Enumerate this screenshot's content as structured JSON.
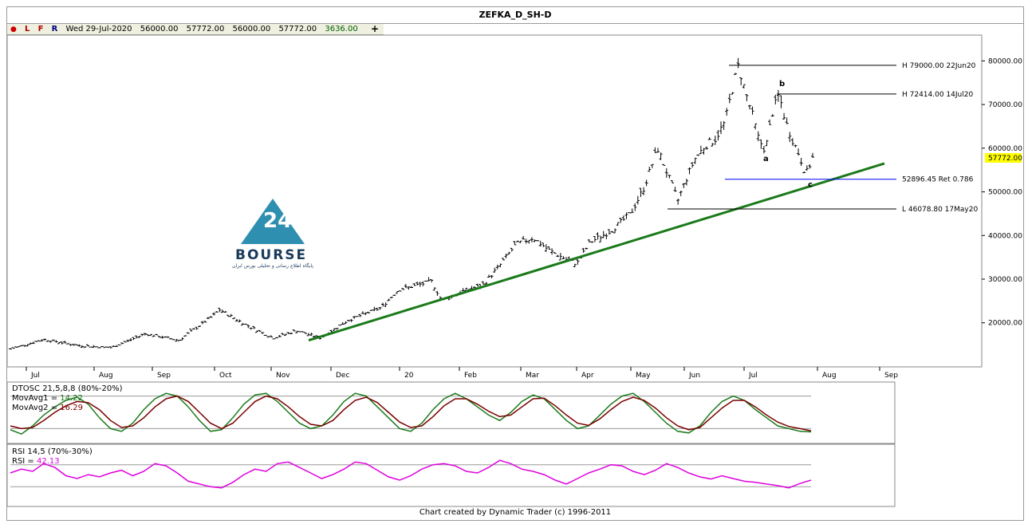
{
  "title": "ZEFKA_D_SH-D",
  "info_bar": {
    "dot": "●",
    "letters": [
      "L",
      "F",
      "R"
    ],
    "date": "Wed 29-Jul-2020",
    "open": "56000.00",
    "high": "57772.00",
    "low": "56000.00",
    "close": "57772.00",
    "change": "3636.00",
    "add_icon": "+"
  },
  "credit": "Chart created by Dynamic Trader  (c)  1996-2011",
  "logo": {
    "text": "BOURSE",
    "tagline": "پایگاه اطلاع رسانی و تحلیلی بورس ایران",
    "accent": "#2f8fb0"
  },
  "chart_data": [
    {
      "type": "ohlc-bar",
      "series_color": "#000000",
      "ylim": [
        11000,
        85000
      ],
      "y_ticks": [
        "80000.00",
        "70000.00",
        "60000.00",
        "50000.00",
        "40000.00",
        "30000.00",
        "20000.00"
      ],
      "y_tick_values": [
        80000,
        70000,
        60000,
        50000,
        40000,
        30000,
        20000
      ],
      "last_price_label": "57772.00",
      "months": [
        "Jul",
        "Aug",
        "Sep",
        "Oct",
        "Nov",
        "Dec",
        "20",
        "Feb",
        "Mar",
        "Apr",
        "May",
        "Jun",
        "Jul",
        "Aug",
        "Sep"
      ],
      "approx_close_path": [
        [
          0,
          14000
        ],
        [
          10,
          16200
        ],
        [
          20,
          14800
        ],
        [
          30,
          14300
        ],
        [
          40,
          17500
        ],
        [
          50,
          16000
        ],
        [
          60,
          21500
        ],
        [
          62,
          23000
        ],
        [
          70,
          19500
        ],
        [
          78,
          16500
        ],
        [
          85,
          18200
        ],
        [
          92,
          16500
        ],
        [
          100,
          20500
        ],
        [
          110,
          23500
        ],
        [
          115,
          27500
        ],
        [
          125,
          29500
        ],
        [
          128,
          25000
        ],
        [
          135,
          27500
        ],
        [
          140,
          28500
        ],
        [
          145,
          33000
        ],
        [
          150,
          38000
        ],
        [
          155,
          39500
        ],
        [
          160,
          36500
        ],
        [
          165,
          34500
        ],
        [
          168,
          33500
        ],
        [
          172,
          38500
        ],
        [
          178,
          41000
        ],
        [
          184,
          45000
        ],
        [
          188,
          51000
        ],
        [
          192,
          60000
        ],
        [
          195,
          54000
        ],
        [
          198,
          48000
        ],
        [
          200,
          52000
        ],
        [
          203,
          57500
        ],
        [
          206,
          60500
        ],
        [
          209,
          62000
        ],
        [
          212,
          66000
        ],
        [
          214,
          73000
        ],
        [
          216,
          79000
        ],
        [
          218,
          73000
        ],
        [
          220,
          68000
        ],
        [
          222,
          62000
        ],
        [
          224,
          59500
        ],
        [
          226,
          68000
        ],
        [
          228,
          72400
        ],
        [
          230,
          66000
        ],
        [
          232,
          62000
        ],
        [
          234,
          58500
        ],
        [
          236,
          54000
        ],
        [
          238,
          57772
        ]
      ],
      "annotations": [
        {
          "label": "H 79000.00 22Jun20",
          "price": 79000
        },
        {
          "label": "H 72414.00 14Jul20",
          "price": 72414
        },
        {
          "label": "52896.45 Ret 0.786",
          "price": 52896.45,
          "color": "#0000ff"
        },
        {
          "label": "L 46078.80 17May20",
          "price": 46078.8
        }
      ],
      "wave_labels": [
        {
          "label": "b",
          "price": 73500
        },
        {
          "label": "a",
          "price": 58500
        },
        {
          "label": "c",
          "price": 52600
        }
      ],
      "trendline": {
        "color": "#1a7a1a",
        "from_price": 16000,
        "to_price": 56500
      }
    },
    {
      "type": "line",
      "title": "DTOSC 21,5,8,8 (80%-20%)",
      "ylim": [
        0,
        100
      ],
      "levels": [
        80,
        20
      ],
      "series": [
        {
          "name": "MovAvg1",
          "value_label": "14.22",
          "color": "#1a7a1a",
          "values": [
            18,
            10,
            25,
            45,
            60,
            72,
            78,
            65,
            40,
            20,
            15,
            30,
            55,
            75,
            85,
            80,
            60,
            35,
            15,
            18,
            40,
            65,
            82,
            85,
            70,
            50,
            30,
            20,
            25,
            45,
            70,
            85,
            80,
            60,
            40,
            20,
            15,
            30,
            55,
            75,
            85,
            75,
            60,
            45,
            35,
            50,
            70,
            82,
            75,
            55,
            35,
            20,
            25,
            45,
            65,
            80,
            85,
            70,
            50,
            30,
            15,
            12,
            25,
            50,
            70,
            80,
            72,
            55,
            40,
            25,
            20,
            15,
            14
          ]
        },
        {
          "name": "MovAvg2",
          "value_label": "16.29",
          "color": "#7a0000",
          "values": [
            25,
            20,
            22,
            35,
            50,
            62,
            70,
            68,
            55,
            35,
            22,
            25,
            40,
            60,
            75,
            80,
            70,
            50,
            30,
            20,
            30,
            50,
            70,
            80,
            75,
            60,
            42,
            28,
            25,
            35,
            55,
            72,
            78,
            68,
            50,
            32,
            22,
            25,
            42,
            62,
            75,
            75,
            65,
            52,
            42,
            45,
            60,
            75,
            76,
            62,
            45,
            30,
            26,
            38,
            55,
            70,
            78,
            72,
            58,
            40,
            25,
            18,
            22,
            40,
            58,
            72,
            72,
            60,
            45,
            32,
            24,
            20,
            16
          ]
        }
      ]
    },
    {
      "type": "line",
      "title": "RSI 14,5 (70%-30%)",
      "ylim": [
        0,
        100
      ],
      "levels": [
        70,
        30
      ],
      "series": [
        {
          "name": "RSI",
          "value_label": "42.13",
          "color": "#e000e0",
          "values": [
            55,
            62,
            58,
            72,
            65,
            50,
            45,
            52,
            48,
            55,
            60,
            50,
            58,
            72,
            68,
            55,
            40,
            35,
            30,
            28,
            38,
            52,
            62,
            58,
            72,
            75,
            65,
            55,
            45,
            52,
            62,
            75,
            72,
            60,
            48,
            42,
            50,
            62,
            70,
            72,
            68,
            58,
            55,
            65,
            78,
            72,
            62,
            58,
            52,
            42,
            35,
            45,
            55,
            62,
            70,
            68,
            58,
            52,
            60,
            72,
            65,
            55,
            48,
            44,
            50,
            45,
            40,
            38,
            35,
            32,
            28,
            36,
            42
          ]
        }
      ]
    }
  ]
}
